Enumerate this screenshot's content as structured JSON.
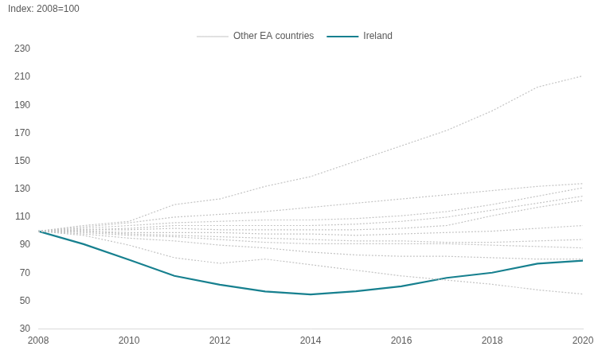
{
  "chart_data": {
    "type": "line",
    "ylabel": "Index: 2008=100",
    "x": [
      2008,
      2009,
      2010,
      2011,
      2012,
      2013,
      2014,
      2015,
      2016,
      2017,
      2018,
      2019,
      2020
    ],
    "xlim": [
      2008,
      2020
    ],
    "xticks": [
      2008,
      2010,
      2012,
      2014,
      2016,
      2018,
      2020
    ],
    "ylim": [
      30,
      230
    ],
    "yticks": [
      30,
      50,
      70,
      90,
      110,
      130,
      150,
      170,
      190,
      210,
      230
    ],
    "grid": false,
    "legend": "top",
    "series": [
      {
        "name": "Other EA countries",
        "color": "#c4c4c4",
        "line_style": "dotted",
        "values": [
          100,
          104,
          107,
          119,
          123,
          132,
          139,
          150,
          161,
          172,
          186,
          203,
          211
        ]
      },
      {
        "name": "Other EA countries",
        "color": "#c4c4c4",
        "line_style": "dotted",
        "values": [
          100,
          103,
          106,
          110,
          112,
          114,
          117,
          120,
          123,
          126,
          129,
          132,
          134
        ]
      },
      {
        "name": "Other EA countries",
        "color": "#c4c4c4",
        "line_style": "dotted",
        "values": [
          100,
          102,
          104,
          106,
          107,
          108,
          108,
          109,
          111,
          114,
          119,
          125,
          131
        ]
      },
      {
        "name": "Other EA countries",
        "color": "#c4c4c4",
        "line_style": "dotted",
        "values": [
          100,
          101,
          102,
          104,
          104,
          104,
          104,
          105,
          107,
          110,
          115,
          120,
          125
        ]
      },
      {
        "name": "Other EA countries",
        "color": "#c4c4c4",
        "line_style": "dotted",
        "values": [
          100,
          101,
          101,
          102,
          101,
          101,
          101,
          101,
          102,
          104,
          111,
          117,
          122
        ]
      },
      {
        "name": "Other EA countries",
        "color": "#c4c4c4",
        "line_style": "dotted",
        "values": [
          100,
          100,
          99,
          99,
          99,
          98,
          98,
          97,
          98,
          99,
          100,
          102,
          104
        ]
      },
      {
        "name": "Other EA countries",
        "color": "#c4c4c4",
        "line_style": "dotted",
        "values": [
          100,
          100,
          98,
          97,
          96,
          95,
          94,
          93,
          93,
          92,
          92,
          93,
          94
        ]
      },
      {
        "name": "Other EA countries",
        "color": "#c4c4c4",
        "line_style": "dotted",
        "values": [
          100,
          99,
          97,
          96,
          94,
          92,
          91,
          91,
          91,
          91,
          90,
          89,
          88
        ]
      },
      {
        "name": "Other EA countries",
        "color": "#c4c4c4",
        "line_style": "dotted",
        "values": [
          100,
          98,
          95,
          93,
          90,
          88,
          85,
          83,
          82,
          82,
          81,
          80,
          80
        ]
      },
      {
        "name": "Other EA countries",
        "color": "#c4c4c4",
        "line_style": "dotted",
        "values": [
          100,
          97,
          90,
          81,
          77,
          80,
          76,
          72,
          68,
          65,
          62,
          58,
          55
        ]
      },
      {
        "name": "Ireland",
        "color": "#17808f",
        "line_style": "solid",
        "values": [
          100,
          90.7,
          79.5,
          68,
          61.7,
          56.9,
          54.7,
          57,
          60.6,
          66.6,
          70.3,
          76.8,
          78.9
        ]
      }
    ]
  }
}
